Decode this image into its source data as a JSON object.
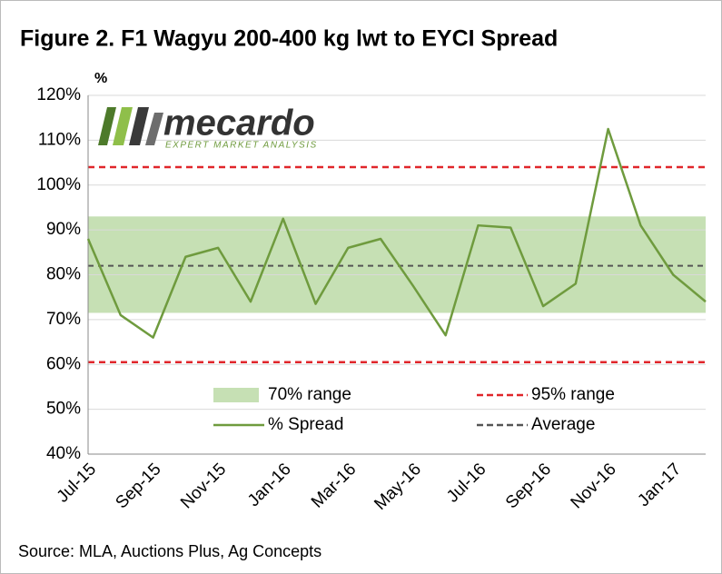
{
  "chart_data": {
    "type": "line",
    "title": "Figure 2. F1 Wagyu 200-400 kg lwt to EYCI Spread",
    "y_axis_label": "%",
    "source": "Source: MLA, Auctions Plus, Ag Concepts",
    "logo": {
      "name": "mecardo",
      "tagline": "EXPERT MARKET ANALYSIS"
    },
    "categories": [
      "Jul-15",
      null,
      "Sep-15",
      null,
      "Nov-15",
      null,
      "Jan-16",
      null,
      "Mar-16",
      null,
      "May-16",
      null,
      "Jul-16",
      null,
      "Sep-16",
      null,
      "Nov-16",
      null,
      "Jan-17",
      null
    ],
    "series": [
      {
        "name": "% Spread",
        "color": "#6f9b3e",
        "values": [
          88,
          71,
          66,
          84,
          86,
          74,
          92.5,
          73.5,
          86,
          88,
          77.5,
          66.5,
          91,
          90.5,
          73,
          78,
          112.5,
          91,
          80,
          74
        ]
      }
    ],
    "range_70": {
      "name": "70% range",
      "low": 71.5,
      "high": 93,
      "color": "#c6e0b4"
    },
    "range_95": {
      "name": "95% range",
      "low": 60.5,
      "high": 104,
      "color": "#e0262b"
    },
    "average": {
      "name": "Average",
      "value": 82,
      "color": "#555555"
    },
    "ylim": [
      40,
      120
    ],
    "yticks": [
      {
        "value": 40,
        "label": "40%"
      },
      {
        "value": 50,
        "label": "50%"
      },
      {
        "value": 60,
        "label": "60%"
      },
      {
        "value": 70,
        "label": "70%"
      },
      {
        "value": 80,
        "label": "80%"
      },
      {
        "value": 90,
        "label": "90%"
      },
      {
        "value": 100,
        "label": "100%"
      },
      {
        "value": 110,
        "label": "110%"
      },
      {
        "value": 120,
        "label": "120%"
      }
    ],
    "grid": true
  }
}
